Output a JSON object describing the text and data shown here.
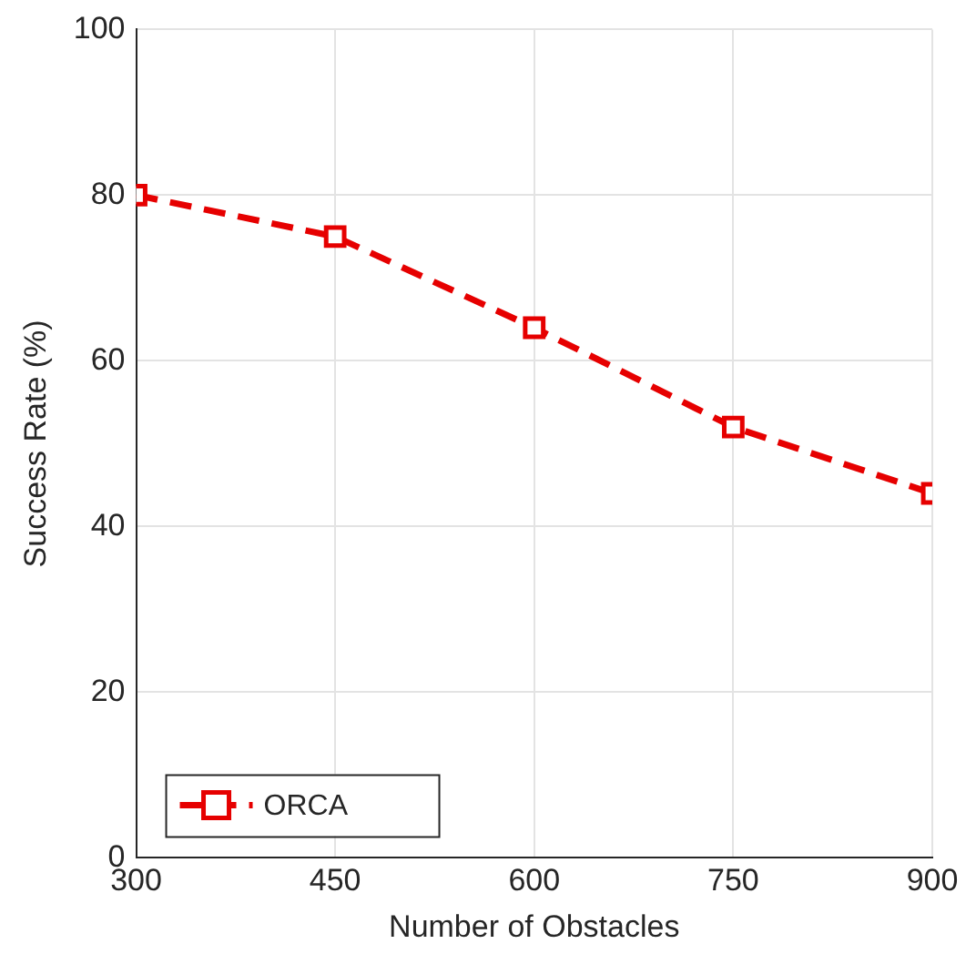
{
  "chart_data": {
    "type": "line",
    "xlabel": "Number of Obstacles",
    "ylabel": "Success Rate (%)",
    "x": [
      300,
      450,
      600,
      750,
      900
    ],
    "series": [
      {
        "name": "ORCA",
        "color": "#e60000",
        "values": [
          80,
          75,
          64,
          52,
          44
        ]
      }
    ],
    "xlim": [
      300,
      900
    ],
    "xticks": [
      300,
      450,
      600,
      750,
      900
    ],
    "ylim": [
      0,
      100
    ],
    "yticks": [
      0,
      20,
      40,
      60,
      80,
      100
    ],
    "grid": true,
    "legend": "bottom left",
    "marker": "square",
    "line_style": "dashed"
  }
}
